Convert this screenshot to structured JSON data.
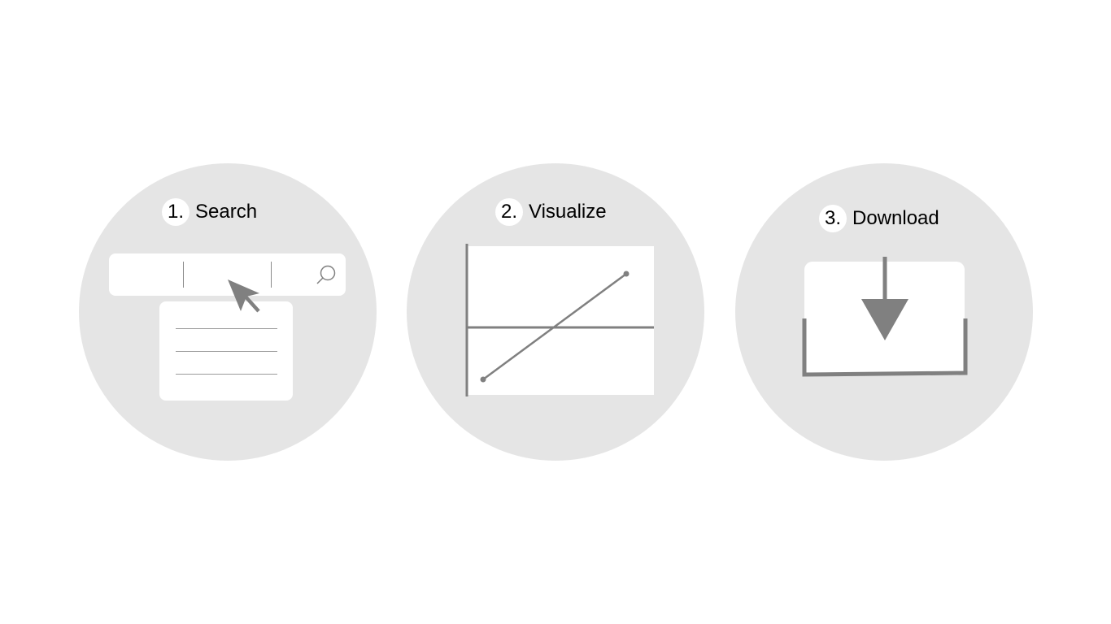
{
  "steps": [
    {
      "number": "1.",
      "title": "Search"
    },
    {
      "number": "2.",
      "title": "Visualize"
    },
    {
      "number": "3.",
      "title": "Download"
    }
  ],
  "icons": {
    "search": "magnifier-icon",
    "pointer": "cursor-arrow-icon",
    "chart": "line-chart-icon",
    "download": "download-arrow-icon"
  },
  "colors": {
    "circle_fill": "#e5e5e5",
    "icon_gray": "#808080",
    "panel_fill": "#ffffff",
    "text": "#000000"
  }
}
